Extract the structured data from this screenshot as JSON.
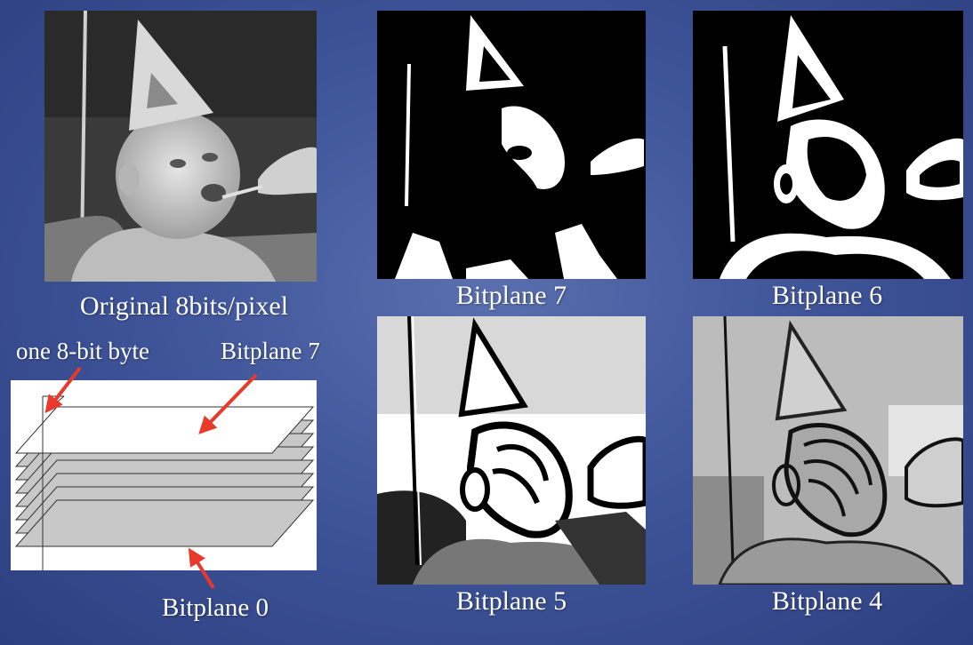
{
  "captions": {
    "original": "Original 8bits/pixel",
    "bitplane7": "Bitplane 7",
    "bitplane6": "Bitplane 6",
    "bitplane5": "Bitplane 5",
    "bitplane4": "Bitplane 4"
  },
  "diagram": {
    "byte_label": "one 8-bit byte",
    "top_label": "Bitplane 7",
    "bottom_label": "Bitplane 0",
    "plane_count": 8
  },
  "colors": {
    "background": "#3f5497",
    "arrow": "#e8392b",
    "plane_fill": "#c8c8c8"
  }
}
